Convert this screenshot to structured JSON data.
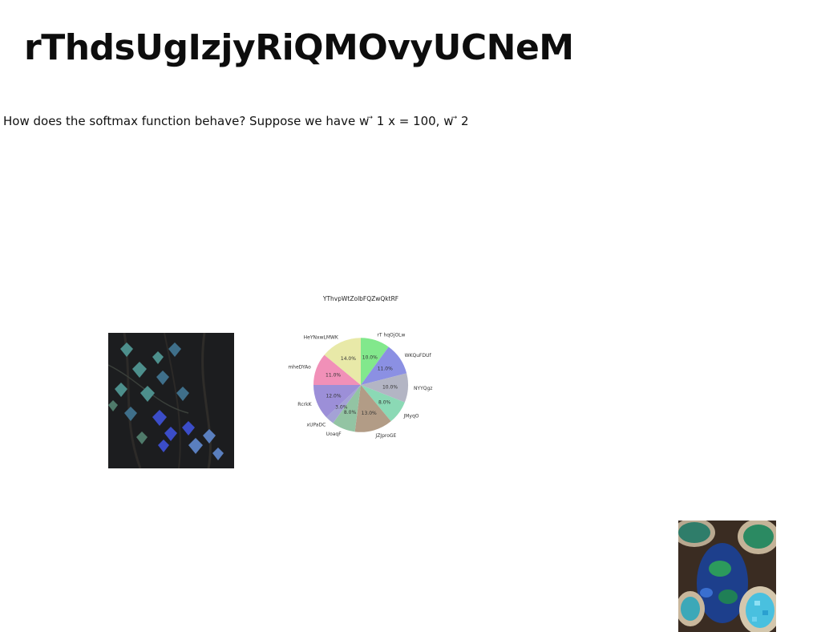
{
  "document": {
    "title": "rThdsUgIzjyRiQMOvyUCNeM",
    "question": "How does the softmax function behave? Suppose we have w ⃗ 1 x = 100, w ⃗ 2"
  },
  "images": {
    "ivy_photo": "ivy-leaves-photo",
    "gem_photo": "blue-gems-bowls-photo"
  },
  "chart_data": {
    "type": "pie",
    "title": "YThvpWtZolbFQZwQktRF",
    "slices": [
      {
        "label": "rT hqOjOLw",
        "value": 10.0,
        "pct": "10.0%",
        "color": "#82e88c"
      },
      {
        "label": "WKQuFDUf",
        "value": 11.0,
        "pct": "11.0%",
        "color": "#8b90e3"
      },
      {
        "label": "NYYQgz",
        "value": 10.0,
        "pct": "10.0%",
        "color": "#b3b5c4"
      },
      {
        "label": "JMyqO",
        "value": 8.0,
        "pct": "8.0%",
        "color": "#8bd9b5"
      },
      {
        "label": "JZJproGE",
        "value": 13.0,
        "pct": "13.0%",
        "color": "#b29c86"
      },
      {
        "label": "UoaqF",
        "value": 8.0,
        "pct": "8.0%",
        "color": "#93c4a3"
      },
      {
        "label": "xUPaDC",
        "value": 3.0,
        "pct": "3.0%",
        "color": "#a4a2d6"
      },
      {
        "label": "RcrkK",
        "value": 12.0,
        "pct": "12.0%",
        "color": "#9c8fd8"
      },
      {
        "label": "mheDYAo",
        "value": 11.0,
        "pct": "11.0%",
        "color": "#f190b8"
      },
      {
        "label": "HeYNxwLMWK",
        "value": 14.0,
        "pct": "14.0%",
        "color": "#e8e9a8"
      }
    ]
  }
}
